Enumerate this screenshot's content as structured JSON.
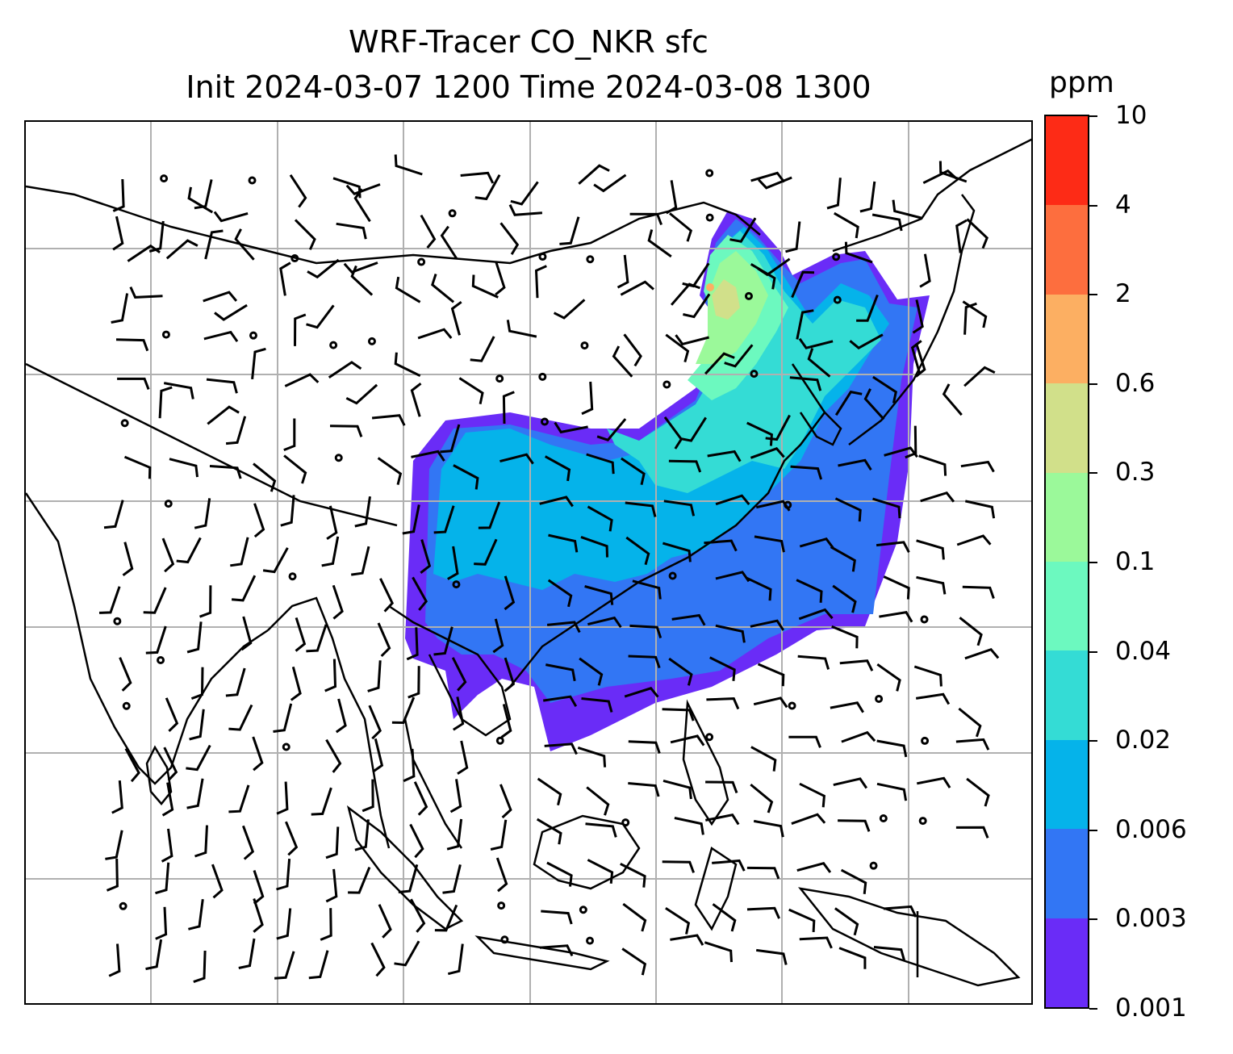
{
  "title_line1": "WRF-Tracer CO_NKR sfc",
  "title_line2": "Init 2024-03-07 1200 Time 2024-03-08 1300",
  "colorbar": {
    "unit": "ppm",
    "levels": [
      "0.001",
      "0.003",
      "0.006",
      "0.02",
      "0.04",
      "0.1",
      "0.3",
      "0.6",
      "2",
      "4",
      "10"
    ],
    "colors": [
      "#6a2cf7",
      "#3276f4",
      "#05b3ea",
      "#34dcd5",
      "#6cf9bf",
      "#9bf99a",
      "#d1e08a",
      "#fcaf62",
      "#fd6e3e",
      "#fd2b16"
    ]
  },
  "map": {
    "gridlines": true,
    "field": "CO_NKR surface tracer concentration",
    "overlay": "wind barbs"
  }
}
